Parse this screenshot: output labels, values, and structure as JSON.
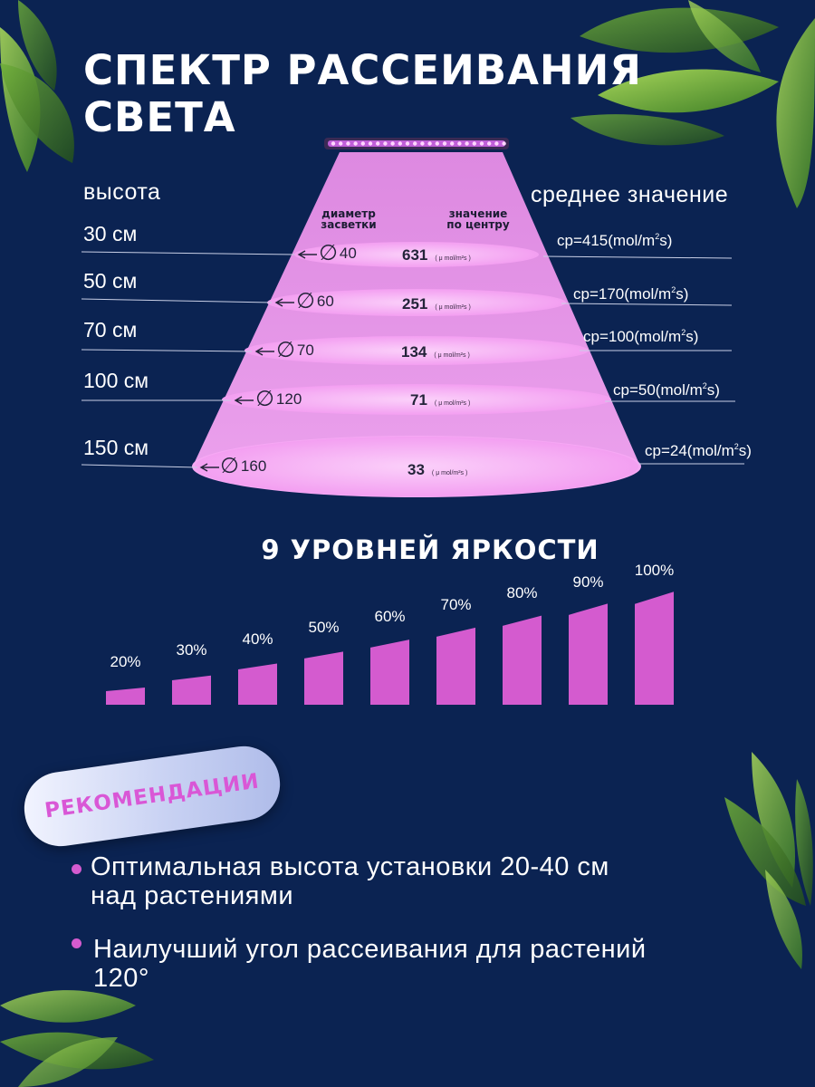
{
  "title": "СПЕКТР РАССЕИВАНИЯ СВЕТА",
  "height_header": "высота",
  "avg_header": "среднее значение",
  "diam_header": "диаметр засветки",
  "center_header": "значение по центру",
  "unit_small": "( μ mol/m²s )",
  "rows": [
    {
      "height": "30 см",
      "diameter": "40",
      "center": "631",
      "avg_prefix": "cp=415(mol/m",
      "avg_sup": "2",
      "avg_suffix": "s)"
    },
    {
      "height": "50 см",
      "diameter": "60",
      "center": "251",
      "avg_prefix": "cp=170(mol/m",
      "avg_sup": "2",
      "avg_suffix": "s)"
    },
    {
      "height": "70 см",
      "diameter": "70",
      "center": "134",
      "avg_prefix": "cp=100(mol/m",
      "avg_sup": "2",
      "avg_suffix": "s)"
    },
    {
      "height": "100 см",
      "diameter": "120",
      "center": "71",
      "avg_prefix": "cp=50(mol/m",
      "avg_sup": "2",
      "avg_suffix": "s)"
    },
    {
      "height": "150 см",
      "diameter": "160",
      "center": "33",
      "avg_prefix": "cp=24(mol/m",
      "avg_sup": "2",
      "avg_suffix": "s)"
    }
  ],
  "levels_title": "9 УРОВНЕЙ ЯРКОСТИ",
  "levels": [
    {
      "label": "20%",
      "value": 20
    },
    {
      "label": "30%",
      "value": 30
    },
    {
      "label": "40%",
      "value": 40
    },
    {
      "label": "50%",
      "value": 50
    },
    {
      "label": "60%",
      "value": 60
    },
    {
      "label": "70%",
      "value": 70
    },
    {
      "label": "80%",
      "value": 80
    },
    {
      "label": "90%",
      "value": 90
    },
    {
      "label": "100%",
      "value": 100
    }
  ],
  "recommendations_label": "РЕКОМЕНДАЦИИ",
  "bullets": [
    {
      "line1": "Оптимальная высота установки 20-40 см",
      "line2": "над растениями"
    },
    {
      "line1": "Наилучший угол рассеивания для растений",
      "line2": "120°"
    }
  ],
  "colors": {
    "background": "#0b2352",
    "accent": "#d45bcf",
    "beam": "#f29af0",
    "leaf": "#6fae3a"
  }
}
